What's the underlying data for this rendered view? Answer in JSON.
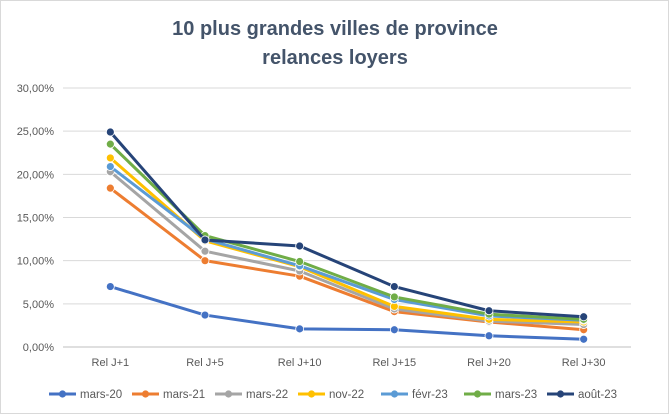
{
  "chart_data": {
    "type": "line",
    "title_lines": [
      "10 plus grandes villes de province",
      "relances loyers"
    ],
    "xlabel": "",
    "ylabel": "",
    "categories": [
      "Rel J+1",
      "Rel J+5",
      "Rel J+10",
      "Rel J+15",
      "Rel J+20",
      "Rel J+30"
    ],
    "y_ticks": [
      "0,00%",
      "5,00%",
      "10,00%",
      "15,00%",
      "20,00%",
      "25,00%",
      "30,00%"
    ],
    "ylim": [
      0,
      30
    ],
    "grid": true,
    "legend_position": "bottom",
    "series": [
      {
        "name": "mars-20",
        "color": "#4472c4",
        "values": [
          7.0,
          3.7,
          2.1,
          2.0,
          1.3,
          0.9
        ]
      },
      {
        "name": "mars-21",
        "color": "#ed7d31",
        "values": [
          18.4,
          10.0,
          8.2,
          4.1,
          2.9,
          2.0
        ]
      },
      {
        "name": "mars-22",
        "color": "#a5a5a5",
        "values": [
          20.3,
          11.1,
          8.8,
          4.4,
          3.0,
          2.6
        ]
      },
      {
        "name": "nov-22",
        "color": "#ffc000",
        "values": [
          21.9,
          12.3,
          9.3,
          4.7,
          3.2,
          2.9
        ]
      },
      {
        "name": "févr-23",
        "color": "#5b9bd5",
        "values": [
          20.9,
          12.5,
          9.4,
          5.5,
          3.6,
          3.1
        ]
      },
      {
        "name": "mars-23",
        "color": "#70ad47",
        "values": [
          23.5,
          12.9,
          9.9,
          5.8,
          3.8,
          3.2
        ]
      },
      {
        "name": "août-23",
        "color": "#264478",
        "values": [
          24.9,
          12.4,
          11.7,
          7.0,
          4.2,
          3.5
        ]
      }
    ]
  }
}
